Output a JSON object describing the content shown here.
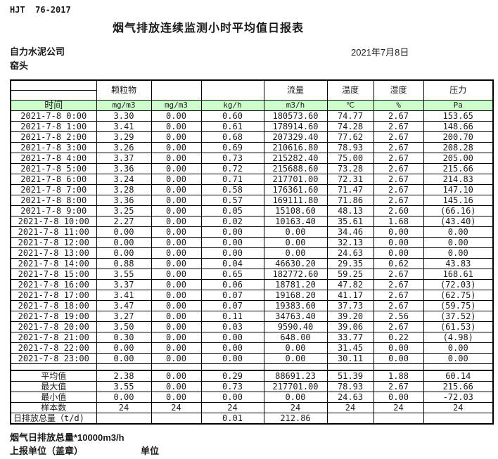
{
  "colors": {
    "header_bg": "#ccffcc",
    "alert_red": "#d00000"
  },
  "header": {
    "standard_code": "HJT  76-2017",
    "title": "烟气排放连续监测小时平均值日报表",
    "company": "自力水泥公司",
    "monitor_point": "窑头",
    "report_date": "2021年7月8日"
  },
  "table": {
    "group_headers": [
      "",
      "颗粒物",
      "",
      "",
      "流量",
      "温度",
      "湿度",
      "压力"
    ],
    "unit_headers": [
      "时间",
      "mg/m3",
      "mg/m3",
      "kg/h",
      "m3/h",
      "℃",
      "%",
      "Pa"
    ],
    "rows": [
      {
        "time": "2021-7-8 0:00",
        "cells": [
          "3.30",
          "0.00",
          "0.60",
          "180573.60",
          "74.77",
          "2.67",
          "153.65"
        ]
      },
      {
        "time": "2021-7-8 1:00",
        "cells": [
          "3.41",
          "0.00",
          "0.61",
          "178914.60",
          "74.28",
          "2.67",
          "148.66"
        ]
      },
      {
        "time": "2021-7-8 2:00",
        "cells": [
          "3.29",
          "0.00",
          "0.68",
          "207329.40",
          "77.62",
          "2.67",
          "200.70"
        ]
      },
      {
        "time": "2021-7-8 3:00",
        "cells": [
          "3.26",
          "0.00",
          "0.69",
          "210616.80",
          "78.93",
          "2.67",
          "208.28"
        ]
      },
      {
        "time": "2021-7-8 4:00",
        "cells": [
          "3.37",
          "0.00",
          "0.73",
          "215282.40",
          "75.00",
          "2.67",
          "205.00"
        ]
      },
      {
        "time": "2021-7-8 5:00",
        "cells": [
          "3.36",
          "0.00",
          "0.72",
          "215688.60",
          "73.28",
          "2.67",
          "215.66"
        ]
      },
      {
        "time": "2021-7-8 6:00",
        "cells": [
          "3.24",
          "0.00",
          "0.71",
          "217701.00",
          "72.31",
          "2.67",
          "214.83"
        ]
      },
      {
        "time": "2021-7-8 7:00",
        "cells": [
          "3.28",
          "0.00",
          "0.58",
          "176361.60",
          "71.47",
          "2.67",
          "147.10"
        ]
      },
      {
        "time": "2021-7-8 8:00",
        "cells": [
          "3.36",
          "0.00",
          "0.57",
          "169111.80",
          "71.86",
          "2.67",
          "145.16"
        ]
      },
      {
        "time": "2021-7-8 9:00",
        "cells": [
          "3.25",
          "0.00",
          "0.05",
          "15108.60",
          "48.13",
          "2.60",
          "(66.16)"
        ]
      },
      {
        "time": "2021-7-8 10:00",
        "cells": [
          "2.27",
          "0.00",
          "0.02",
          "10163.40",
          "35.61",
          "1.68",
          "(43.40)"
        ]
      },
      {
        "time": "2021-7-8 11:00",
        "cells": [
          "0.00",
          "0.00",
          "0.00",
          "0.00",
          "34.46",
          "0.00",
          "0.00"
        ]
      },
      {
        "time": "2021-7-8 12:00",
        "cells": [
          "0.00",
          "0.00",
          "0.00",
          "0.00",
          "32.13",
          "0.00",
          "0.00"
        ]
      },
      {
        "time": "2021-7-8 13:00",
        "cells": [
          "0.00",
          "0.00",
          "0.00",
          "0.00",
          "24.63",
          "0.00",
          "0.00"
        ]
      },
      {
        "time": "2021-7-8 14:00",
        "cells": [
          "0.88",
          "0.00",
          "0.04",
          "46630.20",
          "29.35",
          "0.62",
          "43.83"
        ]
      },
      {
        "time": "2021-7-8 15:00",
        "cells": [
          "3.55",
          "0.00",
          "0.65",
          "182772.60",
          "59.25",
          "2.67",
          "168.61"
        ]
      },
      {
        "time": "2021-7-8 16:00",
        "cells": [
          "3.37",
          "0.00",
          "0.06",
          "18781.20",
          "47.82",
          "2.67",
          "(72.03)"
        ]
      },
      {
        "time": "2021-7-8 17:00",
        "cells": [
          "3.41",
          "0.00",
          "0.07",
          "19168.20",
          "41.17",
          "2.67",
          "(62.75)"
        ]
      },
      {
        "time": "2021-7-8 18:00",
        "cells": [
          "3.47",
          "0.00",
          "0.07",
          "19383.60",
          "37.73",
          "2.67",
          "(59.75)"
        ]
      },
      {
        "time": "2021-7-8 19:00",
        "cells": [
          "3.27",
          "0.00",
          "0.11",
          "34763.40",
          "39.20",
          "2.56",
          "(37.52)"
        ]
      },
      {
        "time": "2021-7-8 20:00",
        "cells": [
          "3.50",
          "0.00",
          "0.03",
          "9590.40",
          "39.06",
          "2.67",
          "(61.53)"
        ]
      },
      {
        "time": "2021-7-8 21:00",
        "cells": [
          "0.30",
          "0.00",
          "0.00",
          "648.00",
          "33.77",
          "0.22",
          "(4.98)"
        ]
      },
      {
        "time": "2021-7-8 22:00",
        "cells": [
          "0.00",
          "0.00",
          "0.00",
          "0.00",
          "31.45",
          "0.00",
          "0.00"
        ]
      },
      {
        "time": "2021-7-8 23:00",
        "cells": [
          "0.00",
          "0.00",
          "0.00",
          "0.00",
          "30.11",
          "0.00",
          "0.00"
        ]
      }
    ],
    "summary": [
      {
        "label": "平均值",
        "cells": [
          "2.38",
          "0.00",
          "0.29",
          "88691.23",
          "51.39",
          "1.88",
          "60.14"
        ]
      },
      {
        "label": "最大值",
        "cells": [
          "3.55",
          "0.00",
          "0.73",
          "217701.00",
          "78.93",
          "2.67",
          "215.66"
        ]
      },
      {
        "label": "最小值",
        "cells": [
          "0.00",
          "0.00",
          "0.00",
          "0.00",
          "24.63",
          "0.00",
          "-72.03"
        ]
      },
      {
        "label": "样本数",
        "cells": [
          "24",
          "24",
          "24",
          "24",
          "24",
          "24",
          "24"
        ]
      },
      {
        "label": "日排放总量（t/d)",
        "label_align": "left",
        "cells": [
          "",
          "",
          "0.01",
          "212.86",
          "",
          "",
          ""
        ]
      }
    ]
  },
  "footer": {
    "note": "烟气日排放总量*10000m3/h",
    "report_unit_label": "上报单位（盖章）",
    "unit_label": "单位"
  }
}
